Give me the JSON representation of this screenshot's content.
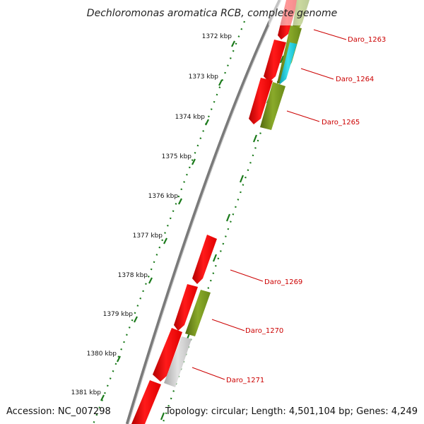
{
  "title": "Dechloromonas aromatica RCB, complete genome",
  "footer": {
    "accession": "Accession: NC_007298",
    "summary": "Topology: circular; Length: 4,501,104 bp; Genes: 4,249"
  },
  "ruler": {
    "kbp_labels": [
      "1372 kbp",
      "1373 kbp",
      "1374 kbp",
      "1375 kbp",
      "1376 kbp",
      "1377 kbp",
      "1378 kbp",
      "1379 kbp",
      "1380 kbp",
      "1381 kbp"
    ]
  },
  "gene_labels": [
    "Daro_1263",
    "Daro_1264",
    "Daro_1265",
    "Daro_1269",
    "Daro_1270",
    "Daro_1271"
  ],
  "colors": {
    "forward_gene": "#ff0000",
    "reverse_gene_olive": "#7a9a1a",
    "reverse_gene_cyan": "#19c6d6",
    "pseudo_gene": "#c8c8c8",
    "backbone": "#777777",
    "ticks": "#1a7a1a",
    "label": "#cc0000"
  }
}
